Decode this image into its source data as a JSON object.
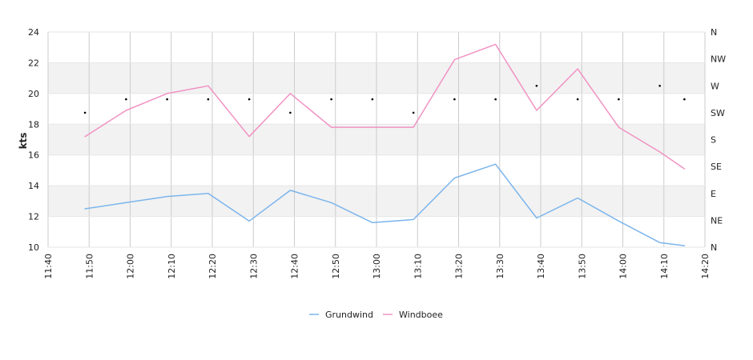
{
  "chart_data": {
    "type": "line",
    "ylabel": "kts",
    "ylim": [
      10,
      24
    ],
    "yticks": [
      "10",
      "12",
      "14",
      "16",
      "18",
      "20",
      "22",
      "24"
    ],
    "xticks": [
      "11:40",
      "11:50",
      "12:00",
      "12:10",
      "12:20",
      "12:30",
      "12:40",
      "12:50",
      "13:00",
      "13:10",
      "13:20",
      "13:30",
      "13:40",
      "13:50",
      "14:00",
      "14:10",
      "14:20"
    ],
    "xlim": [
      "11:40",
      "14:20"
    ],
    "x": [
      "11:49",
      "11:59",
      "12:09",
      "12:19",
      "12:29",
      "12:39",
      "12:49",
      "12:59",
      "13:09",
      "13:19",
      "13:29",
      "13:39",
      "13:49",
      "13:59",
      "14:09",
      "14:15"
    ],
    "series": [
      {
        "name": "Grundwind",
        "color": "#7cb5ec",
        "values": [
          12.5,
          12.9,
          13.3,
          13.5,
          11.7,
          13.7,
          12.9,
          11.6,
          11.8,
          14.5,
          15.4,
          11.9,
          13.2,
          11.7,
          10.3,
          10.1
        ]
      },
      {
        "name": "Windboee",
        "color": "#f192c3",
        "values": [
          17.2,
          18.9,
          20.0,
          20.5,
          17.2,
          20.0,
          17.8,
          17.8,
          17.8,
          22.2,
          23.2,
          18.9,
          21.6,
          17.8,
          16.2,
          15.1
        ]
      }
    ],
    "direction": {
      "axis_labels": [
        "N",
        "NE",
        "E",
        "SE",
        "S",
        "SW",
        "W",
        "NW",
        "N"
      ],
      "x": [
        "11:49",
        "11:59",
        "12:09",
        "12:19",
        "12:29",
        "12:39",
        "12:49",
        "12:59",
        "13:09",
        "13:19",
        "13:29",
        "13:39",
        "13:49",
        "13:59",
        "14:09",
        "14:15"
      ],
      "values": [
        "SW",
        "WSW",
        "WSW",
        "WSW",
        "WSW",
        "SW",
        "WSW",
        "WSW",
        "SW",
        "WSW",
        "WSW",
        "W",
        "WSW",
        "WSW",
        "W",
        "WSW"
      ]
    },
    "grid": true,
    "legend": "bottom-center"
  }
}
